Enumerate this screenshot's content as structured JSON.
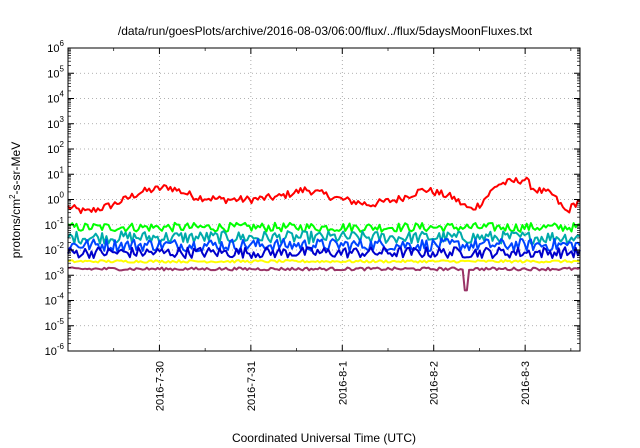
{
  "chart_data": {
    "type": "line",
    "title": "/data/run/goesPlots/archive/2016-08-03/06:00/flux/../flux/5daysMoonFluxes.txt",
    "xlabel": "Coordinated Universal Time (UTC)",
    "ylabel_parts": [
      "protons/cm",
      "2",
      "-s-sr-MeV"
    ],
    "yscale": "log",
    "ylim_exp": [
      -6,
      6
    ],
    "y_tick_exponents": [
      -6,
      -5,
      -4,
      -3,
      -2,
      -1,
      0,
      1,
      2,
      3,
      4,
      5,
      6
    ],
    "y_tick_base": "10",
    "xlim_days": [
      0,
      5.6
    ],
    "x_tick_labels": [
      "2016-7-30",
      "2016-7-31",
      "2016-8-1",
      "2016-8-2",
      "2016-8-3"
    ],
    "x_tick_positions_days": [
      1.0,
      2.0,
      3.0,
      4.0,
      5.0
    ],
    "grid": true,
    "series": [
      {
        "color": "#ff0000",
        "baseline_exp": 0.05,
        "anchors": [
          [
            0,
            -0.3
          ],
          [
            0.2,
            -0.5
          ],
          [
            0.5,
            -0.2
          ],
          [
            0.8,
            0.3
          ],
          [
            1.1,
            0.5
          ],
          [
            1.4,
            0.1
          ],
          [
            1.7,
            0.0
          ],
          [
            2.0,
            0.0
          ],
          [
            2.3,
            0.1
          ],
          [
            2.6,
            0.4
          ],
          [
            2.8,
            0.2
          ],
          [
            3.0,
            0.0
          ],
          [
            3.3,
            -0.2
          ],
          [
            3.6,
            0.0
          ],
          [
            3.9,
            0.4
          ],
          [
            4.2,
            0.1
          ],
          [
            4.4,
            -0.4
          ],
          [
            4.5,
            -0.2
          ],
          [
            4.7,
            0.6
          ],
          [
            5.0,
            0.8
          ],
          [
            5.1,
            0.4
          ],
          [
            5.3,
            0.2
          ],
          [
            5.45,
            -0.5
          ],
          [
            5.6,
            0.0
          ]
        ]
      },
      {
        "color": "#00ff00",
        "baseline_exp": -1.05,
        "anchors": [
          [
            0,
            -1.1
          ],
          [
            5.6,
            -1.1
          ]
        ]
      },
      {
        "color": "#00aaaa",
        "baseline_exp": -1.5,
        "anchors": [
          [
            0,
            -1.5
          ],
          [
            5.6,
            -1.5
          ]
        ]
      },
      {
        "color": "#0044ff",
        "baseline_exp": -1.8,
        "anchors": [
          [
            0,
            -1.8
          ],
          [
            5.6,
            -1.8
          ]
        ]
      },
      {
        "color": "#0000cc",
        "baseline_exp": -2.1,
        "anchors": [
          [
            0,
            -2.1
          ],
          [
            5.6,
            -2.1
          ]
        ]
      },
      {
        "color": "#ffff00",
        "baseline_exp": -2.45,
        "anchors": [
          [
            0,
            -2.45
          ],
          [
            5.6,
            -2.45
          ]
        ]
      },
      {
        "color": "#993366",
        "baseline_exp": -2.75,
        "anchors": [
          [
            0,
            -2.75
          ],
          [
            5.6,
            -2.75
          ]
        ]
      }
    ]
  }
}
